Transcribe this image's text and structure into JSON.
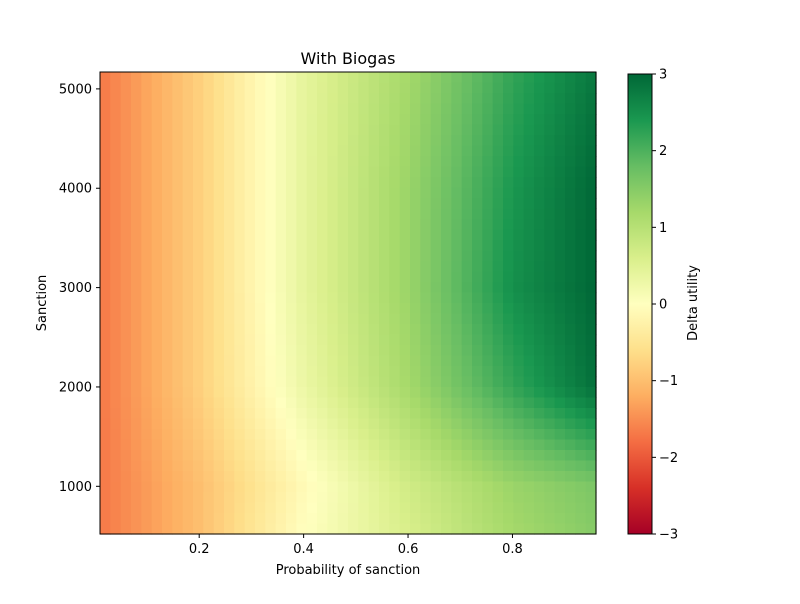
{
  "chart_data": {
    "type": "heatmap",
    "title": "With Biogas",
    "xlabel": "Probability of sanction",
    "ylabel": "Sanction",
    "xlim": [
      0.01,
      0.96
    ],
    "ylim": [
      520,
      5170
    ],
    "x_ticks": [
      0.2,
      0.4,
      0.6,
      0.8
    ],
    "x_tick_labels": [
      "0.2",
      "0.4",
      "0.6",
      "0.8"
    ],
    "y_ticks": [
      1000,
      2000,
      3000,
      4000,
      5000
    ],
    "y_tick_labels": [
      "1000",
      "2000",
      "3000",
      "4000",
      "5000"
    ],
    "colorbar": {
      "label": "Delta utility",
      "colormap": "RdYlGn",
      "vmin": -3,
      "vmax": 3,
      "ticks": [
        -3,
        -2,
        -1,
        0,
        1,
        2,
        3
      ],
      "tick_labels": [
        "−3",
        "−2",
        "−1",
        "0",
        "1",
        "2",
        "3"
      ]
    },
    "x": [
      0.01,
      0.2,
      0.4,
      0.6,
      0.8,
      0.96
    ],
    "y": [
      520,
      1000,
      2000,
      3000,
      4000,
      5170
    ],
    "z": [
      [
        -1.7,
        -1.0,
        0.0,
        0.6,
        1.2,
        1.5
      ],
      [
        -1.7,
        -1.0,
        -0.1,
        0.7,
        1.3,
        1.6
      ],
      [
        -1.7,
        -0.8,
        0.3,
        1.2,
        2.2,
        2.9
      ],
      [
        -1.7,
        -0.8,
        0.4,
        1.3,
        2.5,
        3.0
      ],
      [
        -1.7,
        -0.8,
        0.4,
        1.3,
        2.4,
        3.0
      ],
      [
        -1.7,
        -0.8,
        0.4,
        1.2,
        2.2,
        2.8
      ]
    ]
  }
}
